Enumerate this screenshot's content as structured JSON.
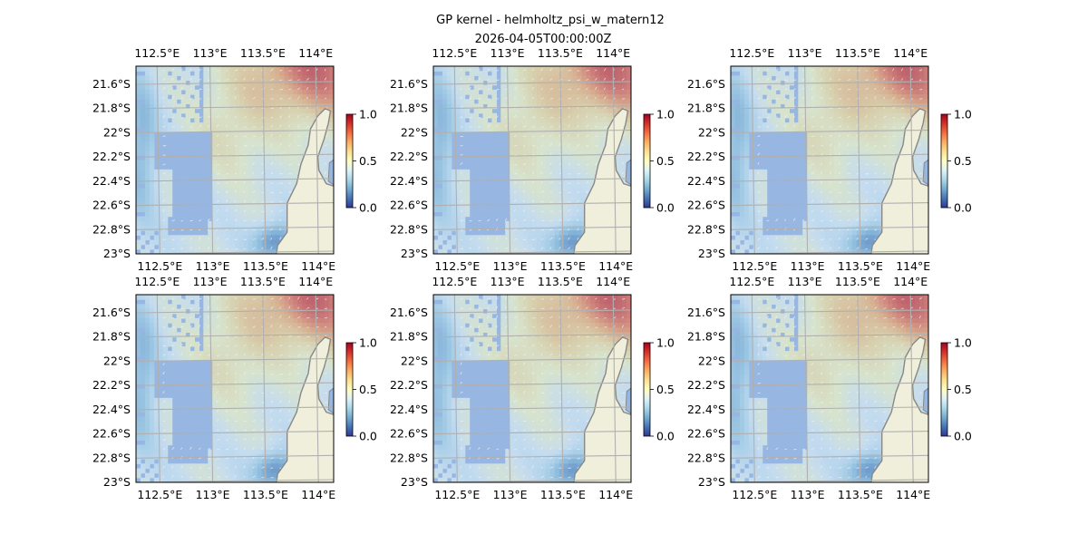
{
  "figure": {
    "title_line1": "GP kernel - helmholtz_psi_w_matern12",
    "title_line2": "2026-04-05T00:00:00Z"
  },
  "colors": {
    "land": "#efefdb",
    "masked_water": "#97b6e1",
    "coast": "#888888",
    "grid": "#b0b0b0",
    "arrow": "#f2f2f2"
  },
  "chart_data": {
    "type": "heatmap",
    "layout": "2 rows x 3 columns, identical map panels, each with its own colorbar",
    "panels": 6,
    "x_axis": {
      "ticks": [
        112.5,
        113.0,
        113.5,
        114.0
      ],
      "tick_labels": [
        "112.5°E",
        "113°E",
        "113.5°E",
        "114°E"
      ],
      "range": [
        112.3,
        114.17
      ]
    },
    "y_axis": {
      "ticks": [
        -21.6,
        -21.8,
        -22.0,
        -22.2,
        -22.4,
        -22.6,
        -22.8,
        -23.0
      ],
      "tick_labels": [
        "21.6°S",
        "21.8°S",
        "22°S",
        "22.2°S",
        "22.4°S",
        "22.6°S",
        "22.8°S",
        "23°S"
      ],
      "range": [
        -23.0,
        -21.45
      ]
    },
    "colorbar": {
      "ticks": [
        0.0,
        0.5,
        1.0
      ],
      "tick_labels": [
        "0.0",
        "0.5",
        "1.0"
      ],
      "range": [
        0.0,
        1.0
      ],
      "colormap": "RdYlBu_r"
    },
    "grid": true,
    "field_description": "high values (~0.8–1.0) in the north-east, moderate (~0.5–0.65) across the middle shelf, low (~0.1–0.3) near 113.6°E 22.9°S and along the western edge; land (coast) on the east side; masked (no data) region west-centre",
    "overlay": "current-velocity quiver arrows"
  }
}
